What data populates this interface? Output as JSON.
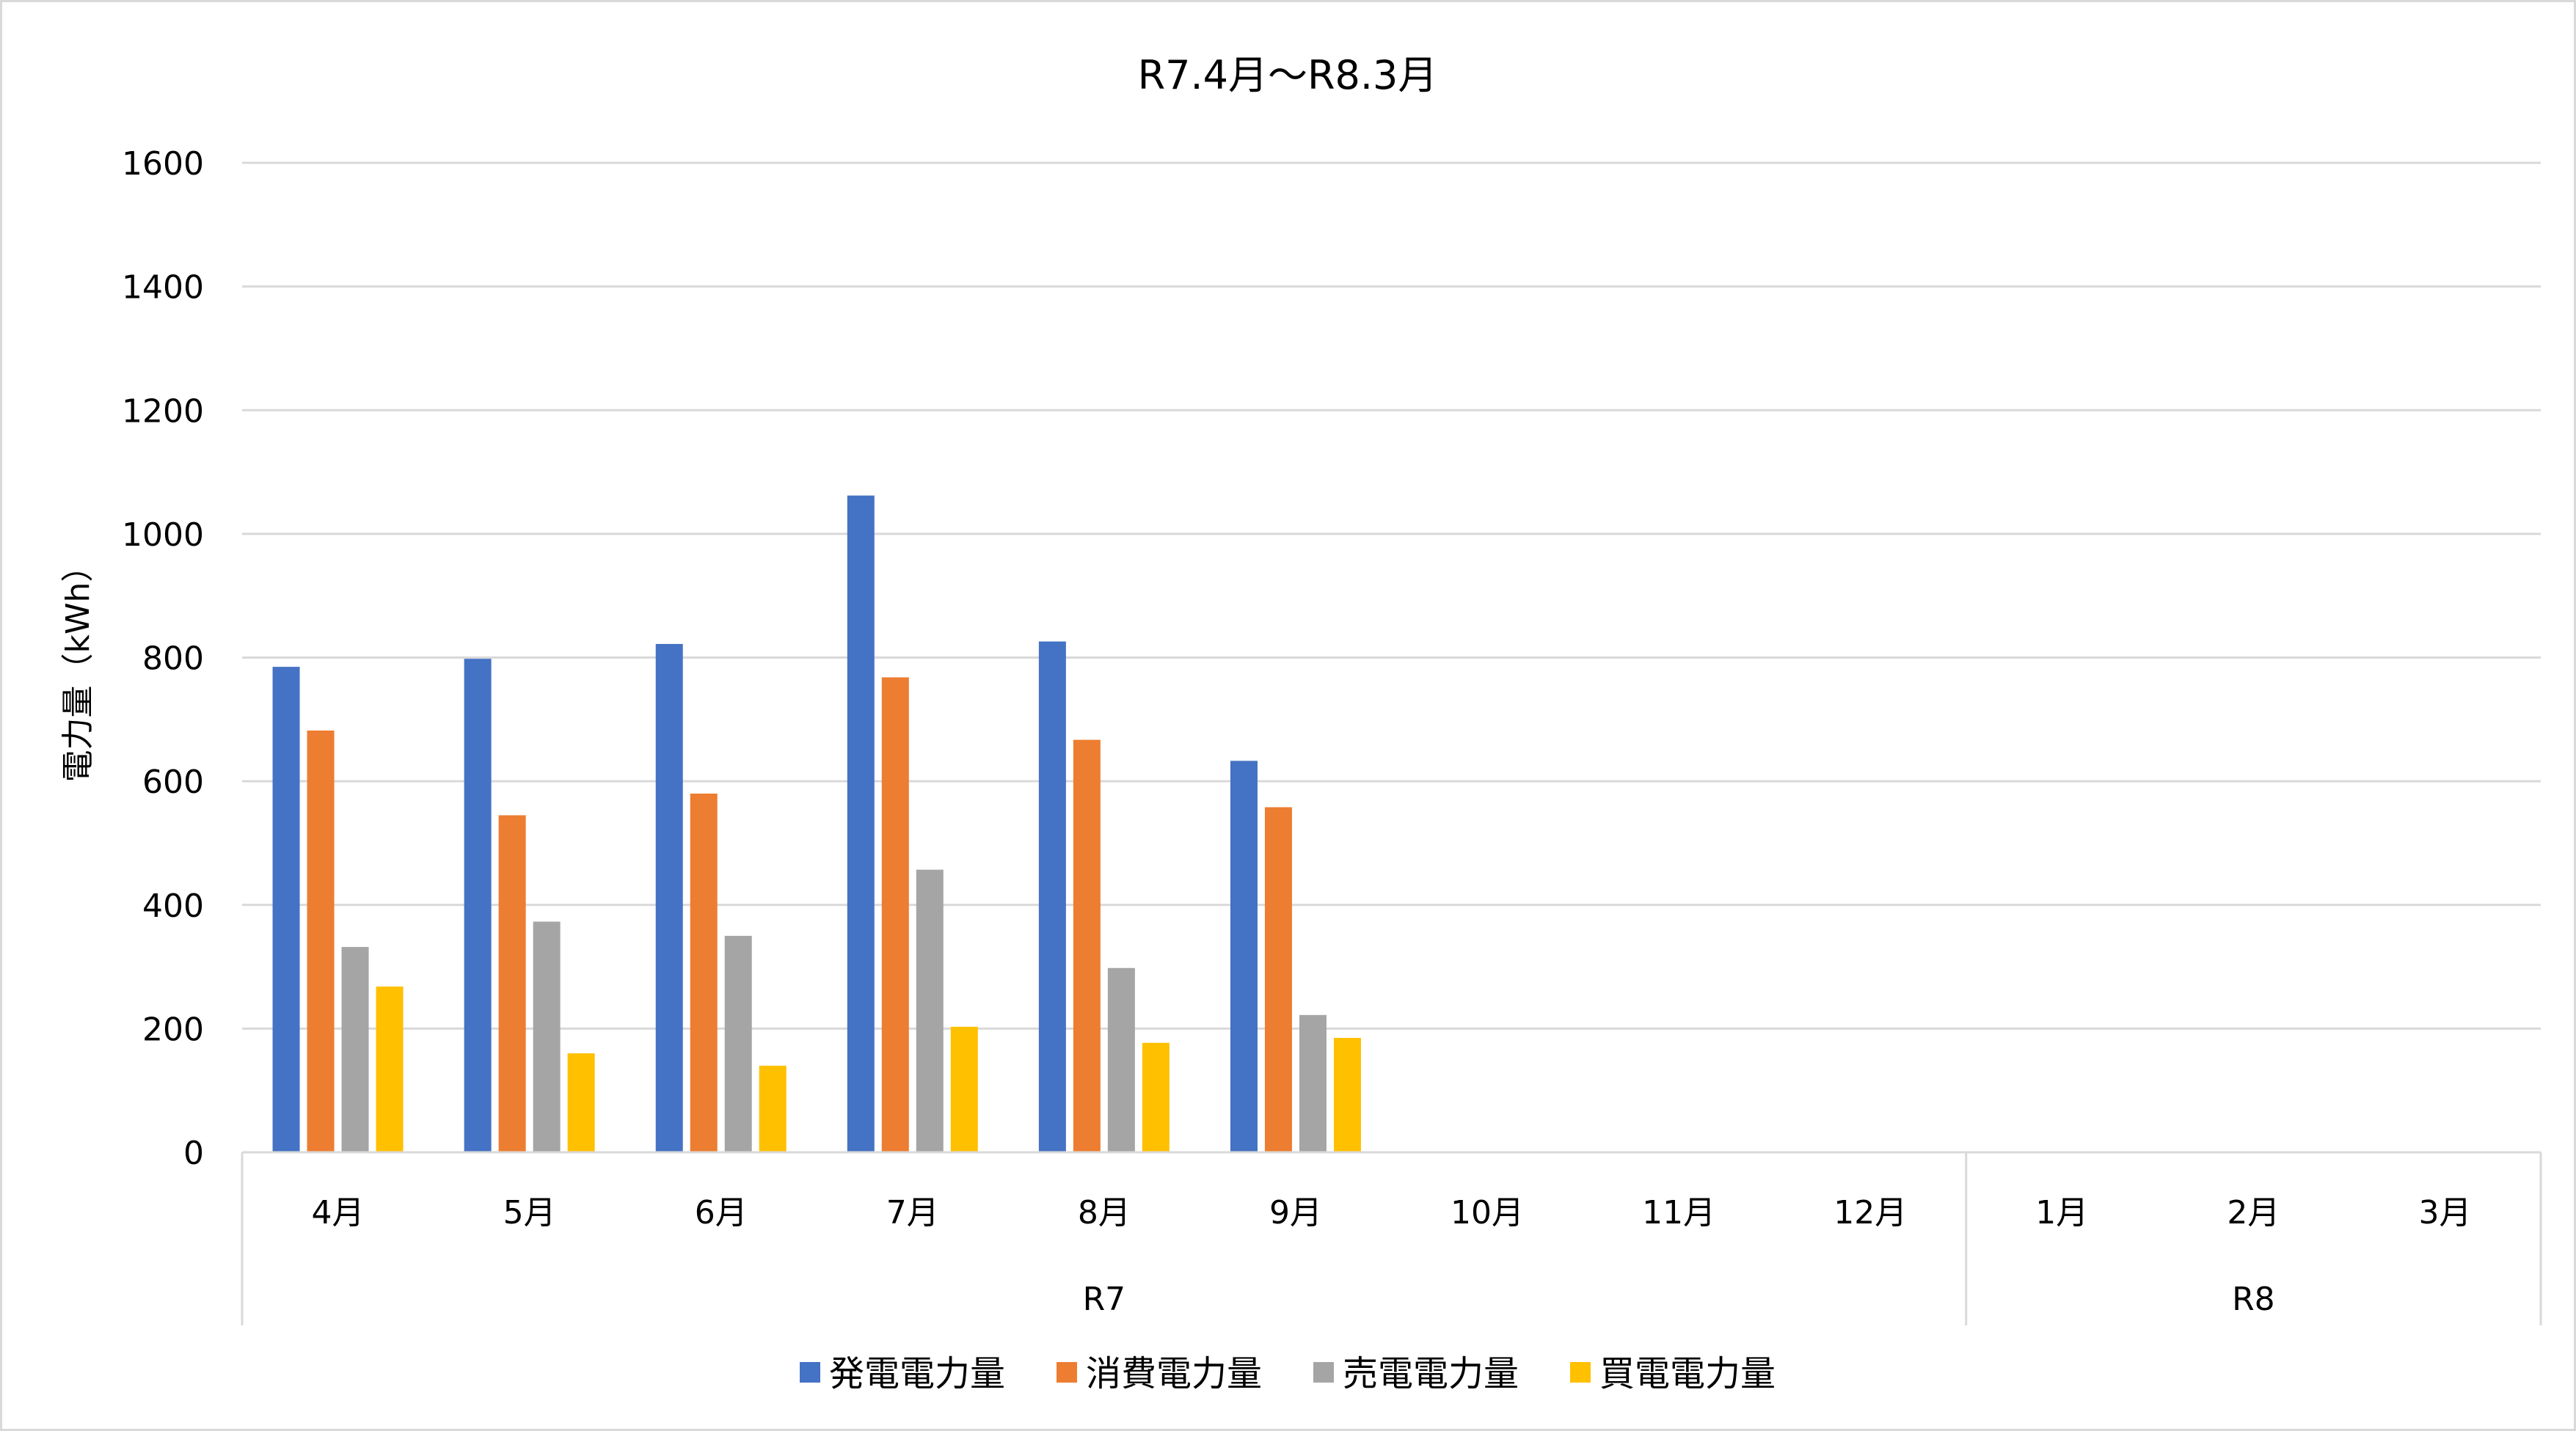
{
  "chart_data": {
    "type": "bar",
    "title": "R7.4月～R8.3月",
    "xlabel": "",
    "ylabel": "電力量（kWh）",
    "ylim": [
      0,
      1600
    ],
    "yticks": [
      0,
      200,
      400,
      600,
      800,
      1000,
      1200,
      1400,
      1600
    ],
    "grid": true,
    "legend_position": "bottom",
    "categories": [
      "4月",
      "5月",
      "6月",
      "7月",
      "8月",
      "9月",
      "10月",
      "11月",
      "12月",
      "1月",
      "2月",
      "3月"
    ],
    "groups": [
      {
        "label": "R7",
        "count": 9
      },
      {
        "label": "R8",
        "count": 3
      }
    ],
    "series": [
      {
        "name": "発電電力量",
        "color": "#4472c4",
        "values": [
          785,
          798,
          822,
          1062,
          826,
          633,
          null,
          null,
          null,
          null,
          null,
          null
        ]
      },
      {
        "name": "消費電力量",
        "color": "#ed7d31",
        "values": [
          682,
          545,
          580,
          768,
          667,
          558,
          null,
          null,
          null,
          null,
          null,
          null
        ]
      },
      {
        "name": "売電電力量",
        "color": "#a5a5a5",
        "values": [
          332,
          373,
          350,
          457,
          298,
          222,
          null,
          null,
          null,
          null,
          null,
          null
        ]
      },
      {
        "name": "買電電力量",
        "color": "#ffc000",
        "values": [
          268,
          160,
          140,
          203,
          177,
          185,
          null,
          null,
          null,
          null,
          null,
          null
        ]
      }
    ]
  }
}
